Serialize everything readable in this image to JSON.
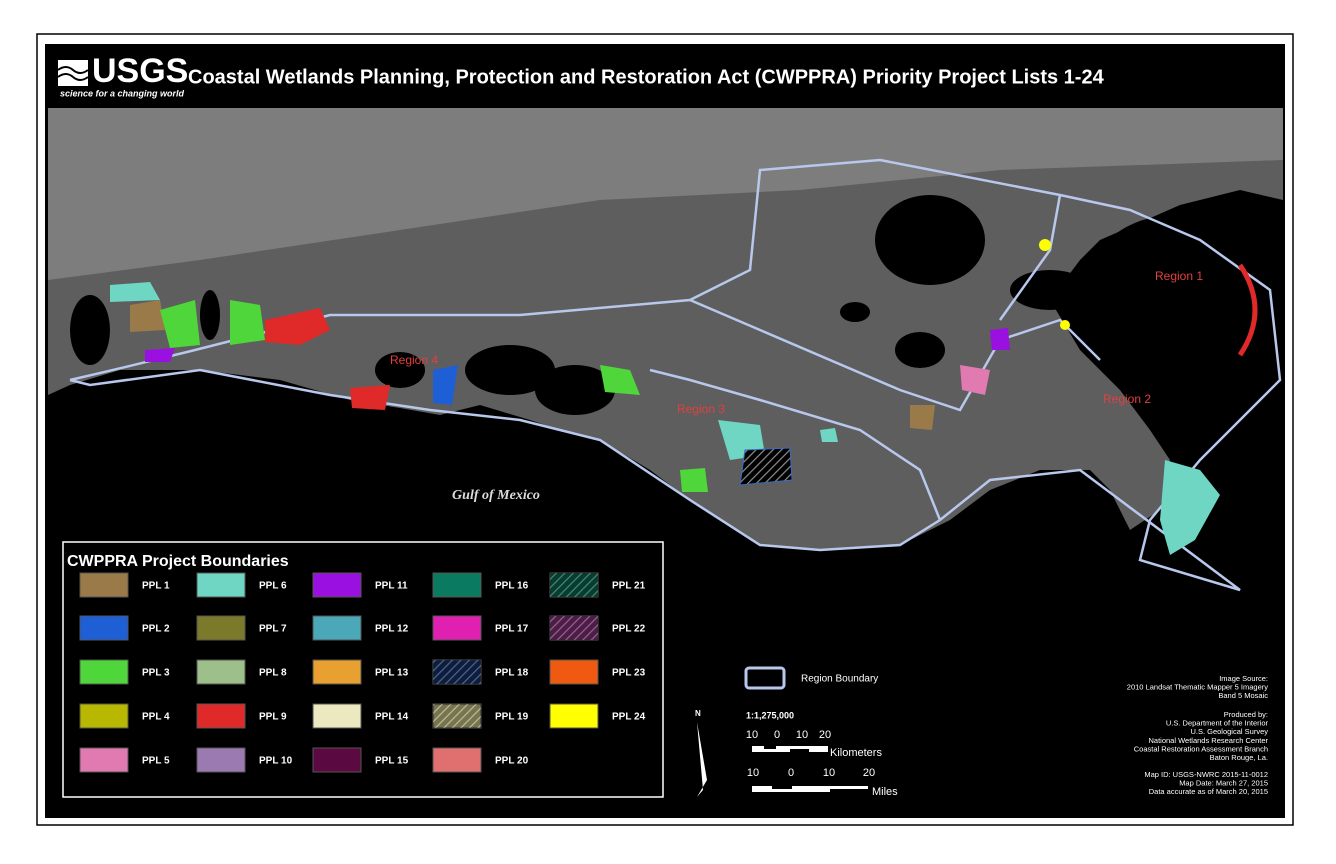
{
  "header": {
    "logo": "USGS",
    "tagline": "science for a changing world",
    "title": "Coastal Wetlands Planning, Protection and Restoration Act (CWPPRA) Priority Project Lists 1-24"
  },
  "map": {
    "regions": [
      "Region 1",
      "Region 2",
      "Region 3",
      "Region 4"
    ],
    "water_label": "Gulf of Mexico"
  },
  "legend": {
    "title": "CWPPRA Project Boundaries",
    "items": [
      {
        "label": "PPL 1",
        "color": "#9b7a4a"
      },
      {
        "label": "PPL 2",
        "color": "#1f5fd6"
      },
      {
        "label": "PPL 3",
        "color": "#4fd63a"
      },
      {
        "label": "PPL 4",
        "color": "#b8b800"
      },
      {
        "label": "PPL 5",
        "color": "#e07ab0"
      },
      {
        "label": "PPL 6",
        "color": "#6fd6c4"
      },
      {
        "label": "PPL 7",
        "color": "#7a7a2a"
      },
      {
        "label": "PPL 8",
        "color": "#9dbf8a"
      },
      {
        "label": "PPL 9",
        "color": "#e02a2a"
      },
      {
        "label": "PPL 10",
        "color": "#9a7ab0"
      },
      {
        "label": "PPL 11",
        "color": "#9a10e0"
      },
      {
        "label": "PPL 12",
        "color": "#4aa8b8"
      },
      {
        "label": "PPL 13",
        "color": "#e8a030"
      },
      {
        "label": "PPL 14",
        "color": "#ece9c0"
      },
      {
        "label": "PPL 15",
        "color": "#5a0a40"
      },
      {
        "label": "PPL 16",
        "color": "#0a7a60"
      },
      {
        "label": "PPL 17",
        "color": "#e020b0"
      },
      {
        "label": "PPL 18",
        "color": "#1a3a80",
        "pattern": "hatch"
      },
      {
        "label": "PPL 19",
        "color": "#ece9a0",
        "pattern": "hatch"
      },
      {
        "label": "PPL 20",
        "color": "#e07070"
      },
      {
        "label": "PPL 21",
        "color": "#0a7a60",
        "pattern": "hatch"
      },
      {
        "label": "PPL 22",
        "color": "#9a3a90",
        "pattern": "hatch"
      },
      {
        "label": "PPL 23",
        "color": "#f05a10"
      },
      {
        "label": "PPL 24",
        "color": "#ffff00"
      }
    ]
  },
  "region_boundary": "Region Boundary",
  "scale": {
    "ratio": "1:1,275,000",
    "north": "N",
    "km_ticks": [
      "10",
      "0",
      "10",
      "20"
    ],
    "km_unit": "Kilometers",
    "mi_ticks": [
      "10",
      "0",
      "10",
      "20"
    ],
    "mi_unit": "Miles"
  },
  "credits": {
    "image_source": [
      "Image Source:",
      "2010 Landsat Thematic Mapper 5 Imagery",
      "Band 5 Mosaic"
    ],
    "produced_by": [
      "Produced by:",
      "U.S. Department of the Interior",
      "U.S. Geological Survey",
      "National Wetlands Research Center",
      "Coastal Restoration Assessment Branch",
      "Baton Rouge, La."
    ],
    "map_info": [
      "Map ID:  USGS-NWRC 2015-11-0012",
      "Map Date:  March 27, 2015",
      "Data accurate as of March 20, 2015"
    ]
  }
}
